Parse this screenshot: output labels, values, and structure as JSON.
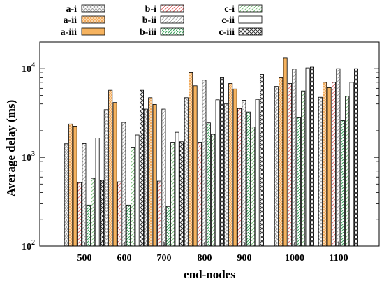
{
  "chart_data": {
    "type": "bar",
    "title": "",
    "xlabel": "end-nodes",
    "ylabel": "Average delay (ms)",
    "y_scale": "log",
    "ylim": [
      100,
      20000
    ],
    "y_ticks": [
      {
        "value": 100,
        "base": "10",
        "exp": "2"
      },
      {
        "value": 1000,
        "base": "10",
        "exp": "3"
      },
      {
        "value": 10000,
        "base": "10",
        "exp": "4"
      }
    ],
    "grid": false,
    "legend_position": "top",
    "categories": [
      "500",
      "600",
      "700",
      "800",
      "900",
      "1000",
      "1100"
    ],
    "series": [
      {
        "name": "a-i",
        "values": [
          1420,
          3450,
          3500,
          4700,
          4000,
          6300,
          4750
        ]
      },
      {
        "name": "a-ii",
        "values": [
          2380,
          5700,
          4700,
          9100,
          6800,
          8000,
          7000
        ]
      },
      {
        "name": "a-iii",
        "values": [
          2250,
          4150,
          3950,
          6400,
          5900,
          13200,
          6100
        ]
      },
      {
        "name": "b-i",
        "values": [
          520,
          530,
          540,
          1480,
          3550,
          6800,
          7000
        ]
      },
      {
        "name": "b-ii",
        "values": [
          1430,
          2480,
          3500,
          7400,
          4400,
          9900,
          10000
        ]
      },
      {
        "name": "b-iii",
        "values": [
          290,
          290,
          280,
          2450,
          3250,
          2800,
          2600
        ]
      },
      {
        "name": "c-i",
        "values": [
          580,
          1280,
          1480,
          1820,
          2200,
          5600,
          4900
        ]
      },
      {
        "name": "c-ii",
        "values": [
          1650,
          1790,
          1920,
          4450,
          4500,
          10200,
          7000
        ]
      },
      {
        "name": "c-iii",
        "values": [
          550,
          5700,
          1500,
          8000,
          8600,
          10400,
          10000
        ]
      }
    ],
    "series_styles": [
      {
        "pattern": "crosshatch",
        "color": "#9a9a9a",
        "fill": "#ffffff"
      },
      {
        "pattern": "orangemesh",
        "color": "#f0a04a",
        "fill": "#fde4c4"
      },
      {
        "pattern": "solid",
        "color": "#000000",
        "fill": "#f6b35f"
      },
      {
        "pattern": "diag",
        "color": "#e57373",
        "fill": "#ffffff"
      },
      {
        "pattern": "diag",
        "color": "#aaaaaa",
        "fill": "#ffffff"
      },
      {
        "pattern": "diag",
        "color": "#3aa45b",
        "fill": "#ffffff"
      },
      {
        "pattern": "diag",
        "color": "#7ec27e",
        "fill": "#ffffff"
      },
      {
        "pattern": "none",
        "color": "#000000",
        "fill": "#ffffff"
      },
      {
        "pattern": "crosshatch",
        "color": "#333333",
        "fill": "#ffffff"
      }
    ]
  }
}
